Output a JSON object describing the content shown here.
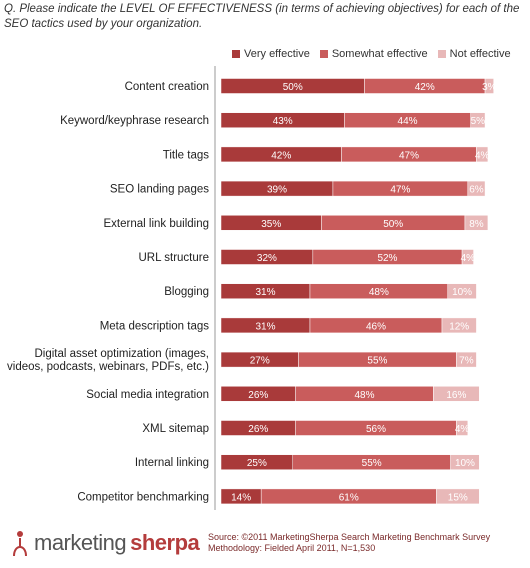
{
  "question": "Q. Please indicate the LEVEL OF EFFECTIVENESS (in terms of achieving objectives) for each of the SEO tactics used by your organization.",
  "colors": {
    "very": "#a93a3a",
    "somewhat": "#c95c5c",
    "not": "#e8b8b8"
  },
  "chart_data": {
    "type": "bar",
    "orientation": "horizontal",
    "stacked": true,
    "categories": [
      "Content creation",
      "Keyword/keyphrase research",
      "Title tags",
      "SEO landing pages",
      "External link building",
      "URL structure",
      "Blogging",
      "Meta description tags",
      "Digital asset optimization (images, videos, podcasts, webinars, PDFs, etc.)",
      "Social media integration",
      "XML sitemap",
      "Internal linking",
      "Competitor benchmarking"
    ],
    "category_lines": [
      [
        "Content creation"
      ],
      [
        "Keyword/keyphrase research"
      ],
      [
        "Title tags"
      ],
      [
        "SEO landing pages"
      ],
      [
        "External link building"
      ],
      [
        "URL structure"
      ],
      [
        "Blogging"
      ],
      [
        "Meta description tags"
      ],
      [
        "Digital asset optimization (images,",
        "videos, podcasts, webinars, PDFs, etc.)"
      ],
      [
        "Social media integration"
      ],
      [
        "XML sitemap"
      ],
      [
        "Internal linking"
      ],
      [
        "Competitor benchmarking"
      ]
    ],
    "series": [
      {
        "name": "Very effective",
        "values": [
          50,
          43,
          42,
          39,
          35,
          32,
          31,
          31,
          27,
          26,
          26,
          25,
          14
        ]
      },
      {
        "name": "Somewhat effective",
        "values": [
          42,
          44,
          47,
          47,
          50,
          52,
          48,
          46,
          55,
          48,
          56,
          55,
          61
        ]
      },
      {
        "name": "Not effective",
        "values": [
          3,
          5,
          4,
          6,
          8,
          4,
          10,
          12,
          7,
          16,
          4,
          10,
          15
        ]
      }
    ],
    "value_suffix": "%",
    "legend_position": "top",
    "grid": false
  },
  "footer": {
    "logo_part1": "marketing",
    "logo_part2": "sherpa",
    "source_line": "Source: ©2011 MarketingSherpa Search Marketing Benchmark Survey",
    "method_line": "Methodology: Fielded April 2011, N=1,530"
  }
}
